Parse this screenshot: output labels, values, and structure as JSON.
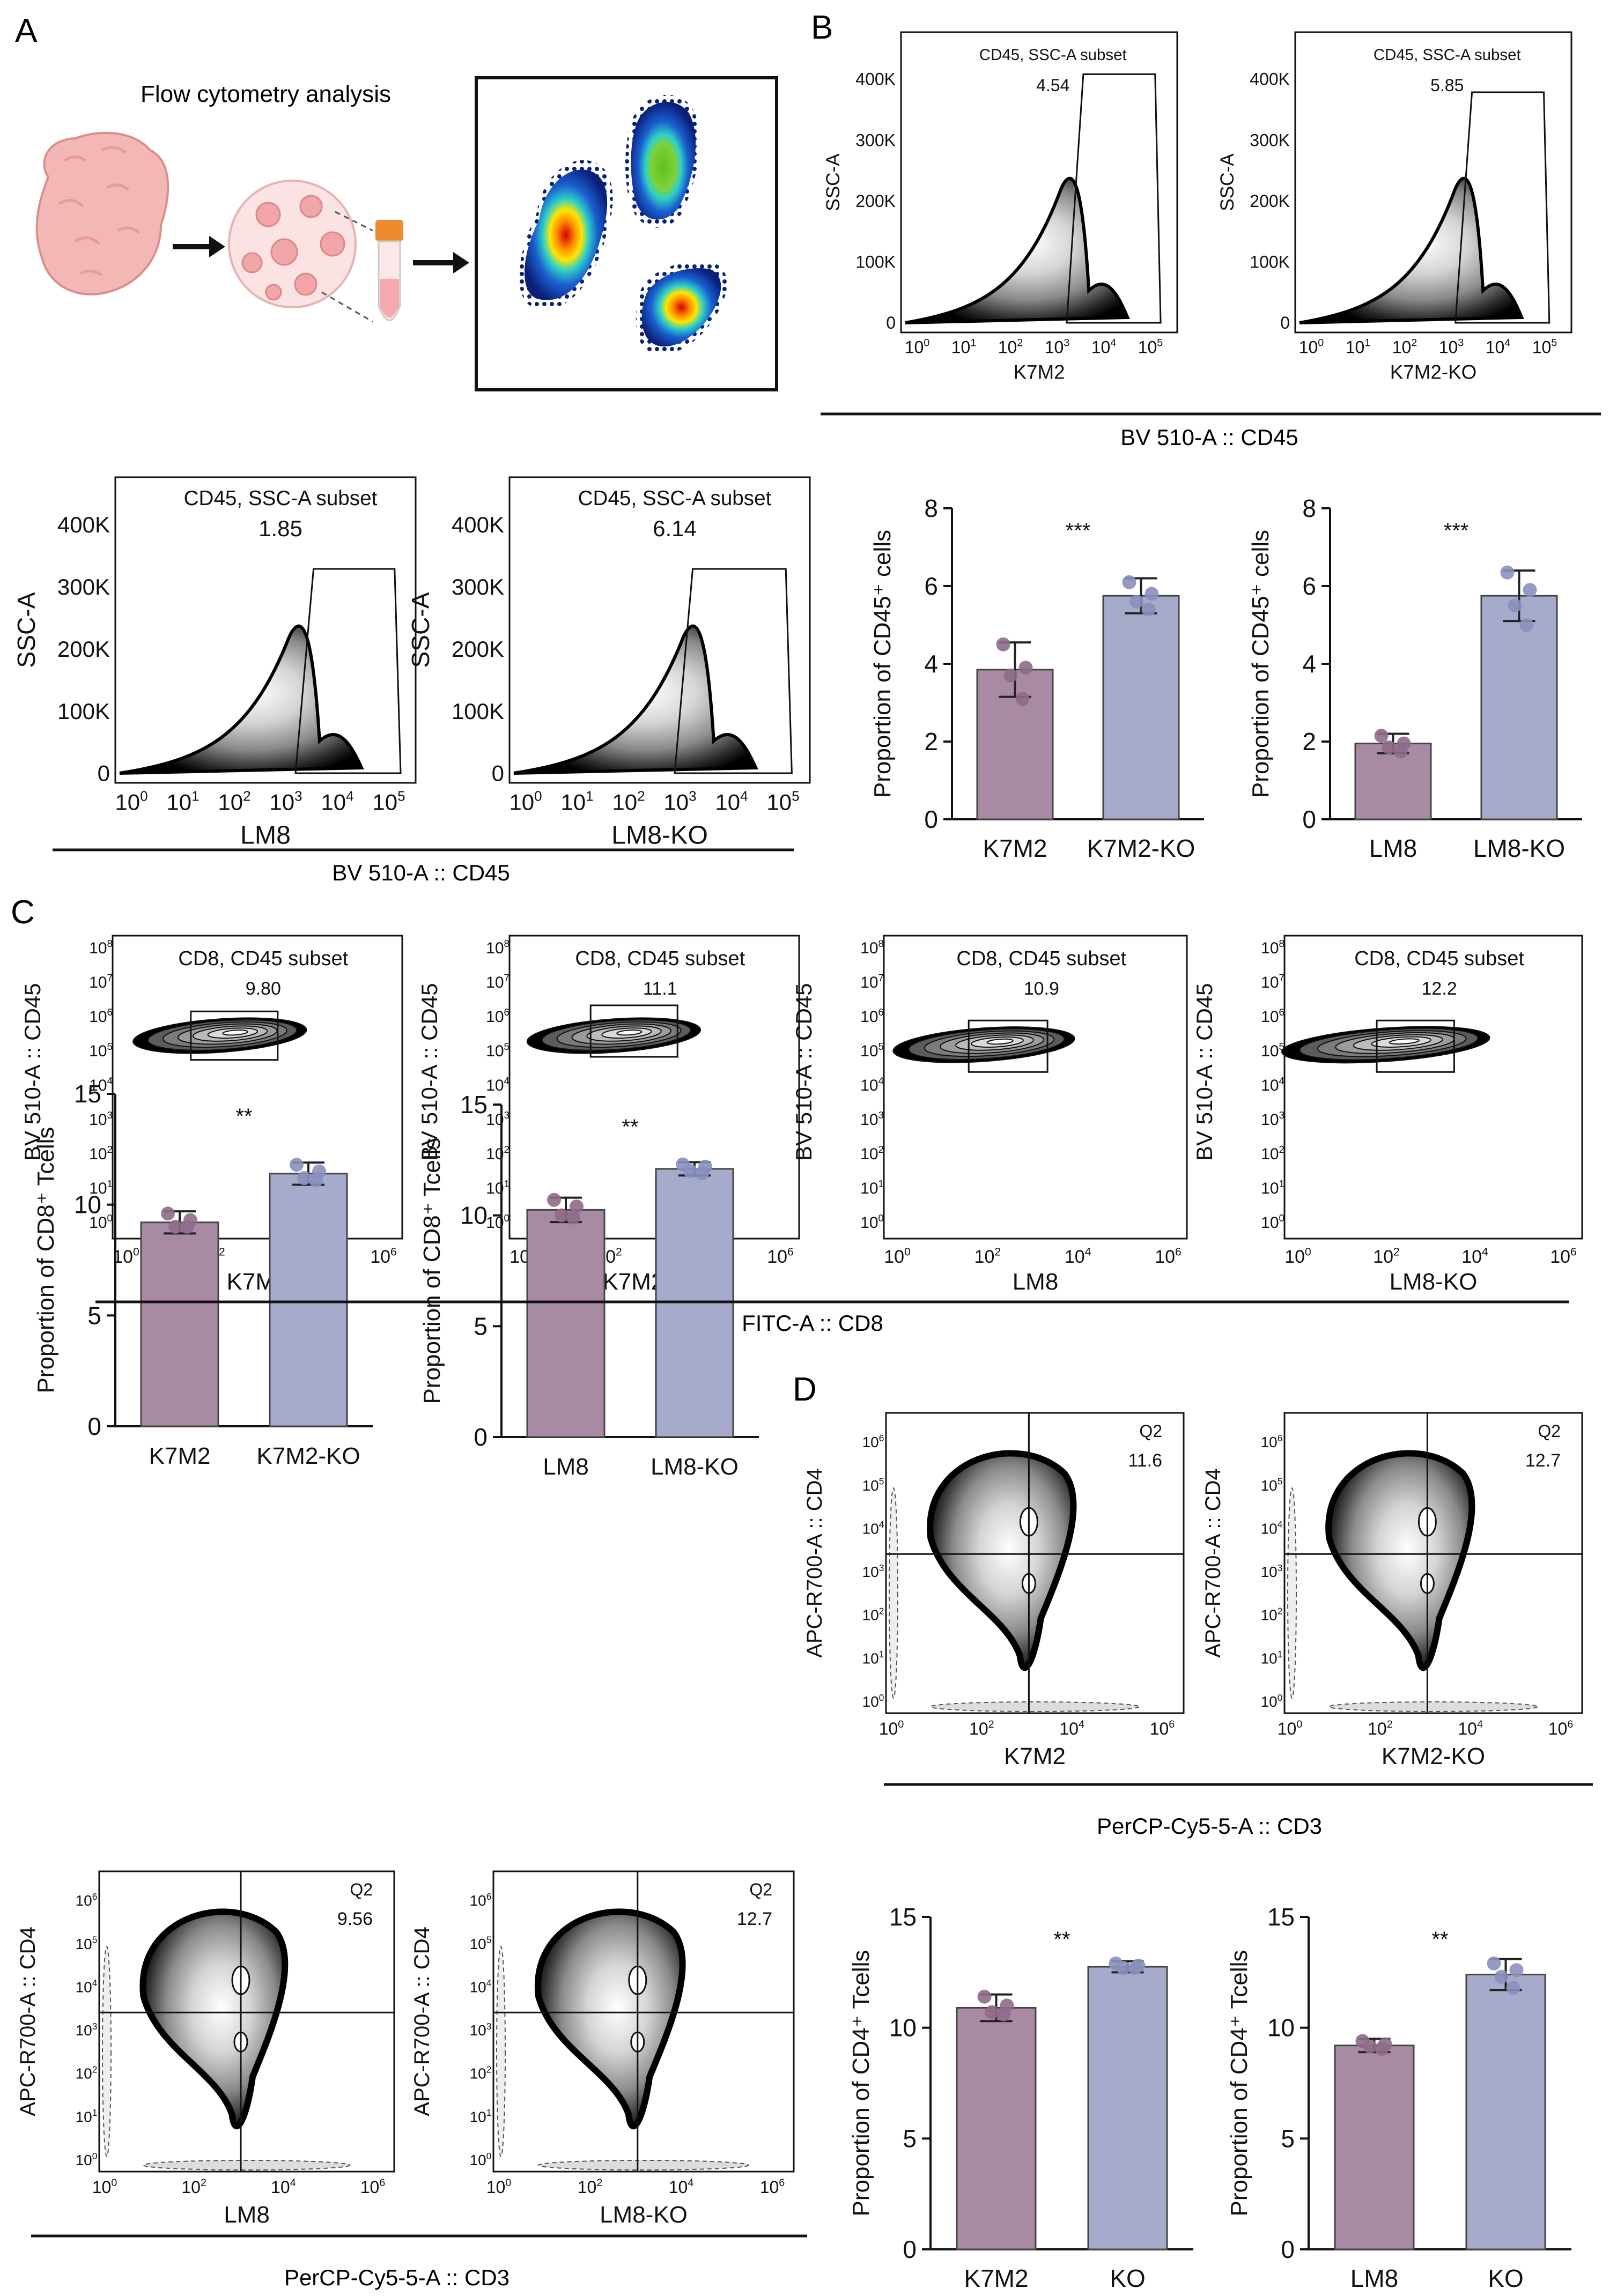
{
  "panel_letters": [
    "A",
    "B",
    "C",
    "D"
  ],
  "schematic": {
    "title": "Flow cytometry analysis"
  },
  "gate_labels": {
    "cd45_gate": "CD45, SSC-A subset",
    "cd8_gate": "CD8, CD45 subset",
    "quadrant": "Q2"
  },
  "axes": {
    "ssc": "SSC-A",
    "cd45": "BV 510-A :: CD45",
    "cd8": "FITC-A :: CD8",
    "cd4": "APC-R700-A :: CD4",
    "cd3": "PerCP-Cy5-5-A :: CD3",
    "ssc_ticks": [
      "0",
      "100K",
      "200K",
      "300K",
      "400K"
    ]
  },
  "group_labels": [
    "K7M2",
    "K7M2-KO",
    "LM8",
    "LM8-KO",
    "KO"
  ],
  "flow_plots": {
    "cd45_k7m2": {
      "sample": "K7M2",
      "value": "4.54"
    },
    "cd45_k7m2_ko": {
      "sample": "K7M2-KO",
      "value": "5.85"
    },
    "cd45_lm8": {
      "sample": "LM8",
      "value": "1.85"
    },
    "cd45_lm8_ko": {
      "sample": "LM8-KO",
      "value": "6.14"
    },
    "cd8_k7m2": {
      "sample": "K7M2",
      "value": "9.80"
    },
    "cd8_k7m2_ko": {
      "sample": "K7M2-KO",
      "value": "11.1"
    },
    "cd8_lm8": {
      "sample": "LM8",
      "value": "10.9"
    },
    "cd8_lm8_ko": {
      "sample": "LM8-KO",
      "value": "12.2"
    },
    "cd4_k7m2": {
      "sample": "K7M2",
      "value": "11.6"
    },
    "cd4_k7m2_ko": {
      "sample": "K7M2-KO",
      "value": "12.7"
    },
    "cd4_lm8": {
      "sample": "LM8",
      "value": "9.56"
    },
    "cd4_lm8_ko": {
      "sample": "LM8-KO",
      "value": "12.7"
    }
  },
  "colors": {
    "wt_bar": "#a88aa4",
    "ko_bar": "#a6abcb",
    "wt_dot": "#8e6b8a",
    "ko_dot": "#8a90bd",
    "axis": "#111111"
  },
  "chart_data": [
    {
      "id": "cd45_k7m2_bar",
      "type": "bar",
      "categories": [
        "K7M2",
        "K7M2-KO"
      ],
      "values": [
        3.85,
        5.75
      ],
      "errors": [
        0.7,
        0.45
      ],
      "points": [
        [
          4.5,
          3.9,
          3.7,
          3.1
        ],
        [
          6.1,
          5.8,
          5.6,
          5.4
        ]
      ],
      "significance": "***",
      "ylabel": "Proportion of CD45⁺ cells",
      "ylim": [
        0,
        8
      ],
      "yticks": [
        0,
        2,
        4,
        6,
        8
      ]
    },
    {
      "id": "cd45_lm8_bar",
      "type": "bar",
      "categories": [
        "LM8",
        "LM8-KO"
      ],
      "values": [
        1.95,
        5.75
      ],
      "errors": [
        0.25,
        0.65
      ],
      "points": [
        [
          2.15,
          1.95,
          1.85,
          1.75
        ],
        [
          6.35,
          5.9,
          5.5,
          5.0
        ]
      ],
      "significance": "***",
      "ylabel": "Proportion of CD45⁺ cells",
      "ylim": [
        0,
        8
      ],
      "yticks": [
        0,
        2,
        4,
        6,
        8
      ]
    },
    {
      "id": "cd8_k7m2_bar",
      "type": "bar",
      "categories": [
        "K7M2",
        "K7M2-KO"
      ],
      "values": [
        9.2,
        11.4
      ],
      "errors": [
        0.5,
        0.5
      ],
      "points": [
        [
          9.6,
          9.3,
          9.0,
          9.0
        ],
        [
          11.8,
          11.5,
          11.2,
          11.1
        ]
      ],
      "significance": "**",
      "ylabel": "Proportion of CD8⁺ Tcells",
      "ylim": [
        0,
        15
      ],
      "yticks": [
        0,
        5,
        10,
        15
      ]
    },
    {
      "id": "cd8_lm8_bar",
      "type": "bar",
      "categories": [
        "LM8",
        "LM8-KO"
      ],
      "values": [
        10.25,
        12.1
      ],
      "errors": [
        0.55,
        0.3
      ],
      "points": [
        [
          10.7,
          10.4,
          10.0,
          9.9
        ],
        [
          12.3,
          12.2,
          12.0,
          11.9
        ]
      ],
      "significance": "**",
      "ylabel": "Proportion of CD8⁺ Tcells",
      "ylim": [
        0,
        15
      ],
      "yticks": [
        0,
        5,
        10,
        15
      ]
    },
    {
      "id": "cd4_k7m2_bar",
      "type": "bar",
      "categories": [
        "K7M2",
        "KO"
      ],
      "values": [
        10.9,
        12.75
      ],
      "errors": [
        0.6,
        0.25
      ],
      "points": [
        [
          11.4,
          11.0,
          10.7,
          10.6
        ],
        [
          12.9,
          12.8,
          12.7,
          12.7
        ]
      ],
      "significance": "**",
      "ylabel": "Proportion of CD4⁺ Tcells",
      "ylim": [
        0,
        15
      ],
      "yticks": [
        0,
        5,
        10,
        15
      ]
    },
    {
      "id": "cd4_lm8_bar",
      "type": "bar",
      "categories": [
        "LM8",
        "KO"
      ],
      "values": [
        9.2,
        12.4
      ],
      "errors": [
        0.3,
        0.7
      ],
      "points": [
        [
          9.4,
          9.25,
          9.15,
          9.05
        ],
        [
          12.9,
          12.6,
          12.3,
          11.8
        ]
      ],
      "significance": "**",
      "ylabel": "Proportion of CD4⁺ Tcells",
      "ylim": [
        0,
        15
      ],
      "yticks": [
        0,
        5,
        10,
        15
      ]
    }
  ]
}
